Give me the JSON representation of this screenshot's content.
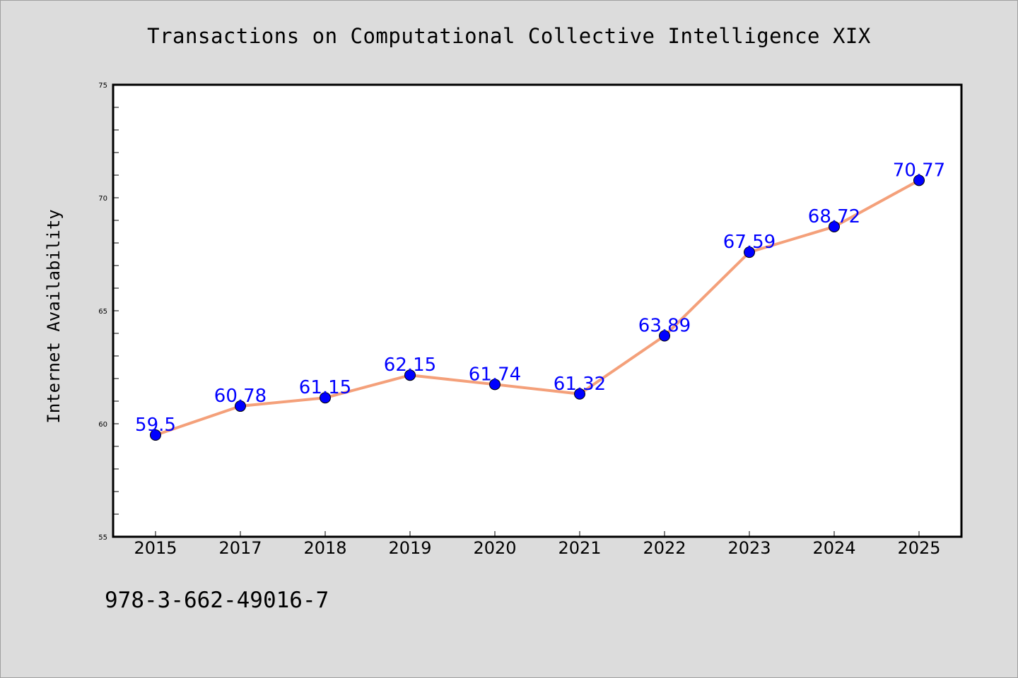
{
  "chart_data": {
    "type": "line",
    "title": "Transactions on Computational Collective Intelligence XIX",
    "xlabel": "",
    "ylabel": "Internet Availability",
    "categories": [
      "2015",
      "2017",
      "2018",
      "2019",
      "2020",
      "2021",
      "2022",
      "2023",
      "2024",
      "2025"
    ],
    "series": [
      {
        "values": [
          59.5,
          60.78,
          61.15,
          62.15,
          61.74,
          61.32,
          63.89,
          67.59,
          68.72,
          70.77
        ],
        "labels": [
          "59.5",
          "60.78",
          "61.15",
          "62.15",
          "61.74",
          "61.32",
          "63.89",
          "67.59",
          "68.72",
          "70.77"
        ],
        "line_color": "#f4a07a",
        "marker_color": "#0000ff"
      }
    ],
    "ylim": [
      55,
      75
    ],
    "y_ticks": [
      55,
      60,
      65,
      70,
      75
    ],
    "y_tick_labels": [
      "55",
      "60",
      "65",
      "70",
      "75"
    ],
    "grid": false,
    "legend": "none"
  },
  "footnote": "978-3-662-49016-7"
}
